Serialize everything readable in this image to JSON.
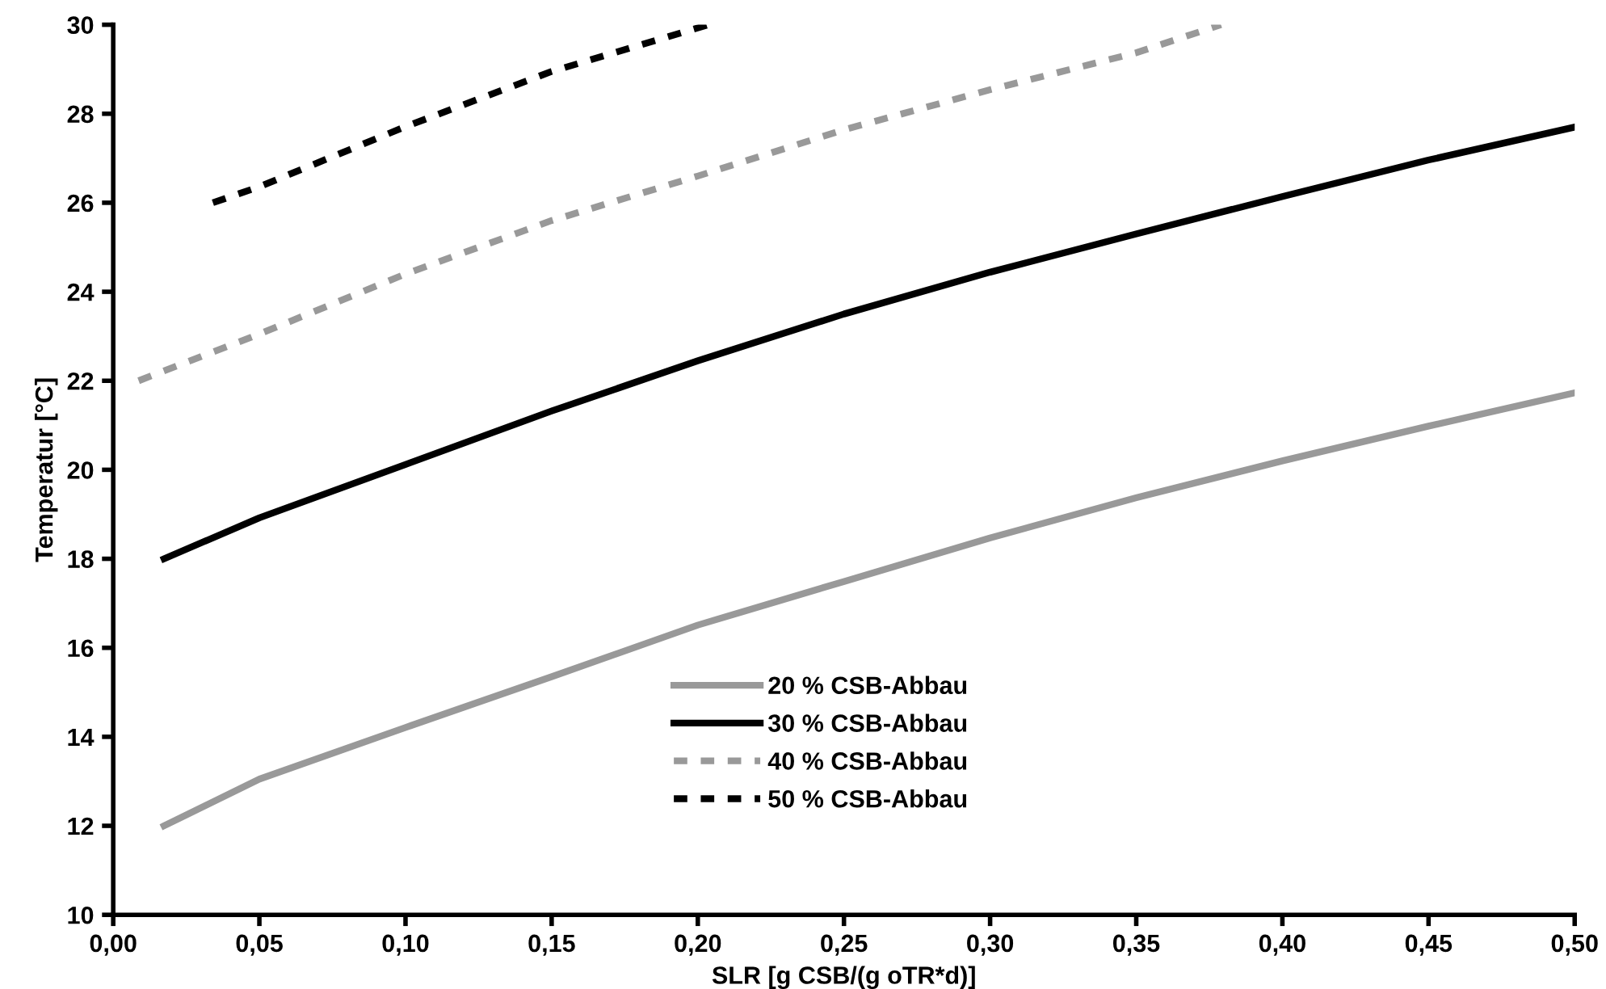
{
  "chart_data": {
    "type": "line",
    "xlabel": "SLR [g CSB/(g oTR*d)]",
    "ylabel": "Temperatur [°C]",
    "xlim": [
      0,
      0.5
    ],
    "ylim": [
      10,
      30
    ],
    "xticks": [
      {
        "value": 0,
        "label": "0,00"
      },
      {
        "value": 0.05,
        "label": "0,05"
      },
      {
        "value": 0.1,
        "label": "0,10"
      },
      {
        "value": 0.15,
        "label": "0,15"
      },
      {
        "value": 0.2,
        "label": "0,20"
      },
      {
        "value": 0.25,
        "label": "0,25"
      },
      {
        "value": 0.3,
        "label": "0,30"
      },
      {
        "value": 0.35,
        "label": "0,35"
      },
      {
        "value": 0.4,
        "label": "0,40"
      },
      {
        "value": 0.45,
        "label": "0,45"
      },
      {
        "value": 0.5,
        "label": "0,50"
      }
    ],
    "yticks": [
      10,
      12,
      14,
      16,
      18,
      20,
      22,
      24,
      26,
      28,
      30
    ],
    "grid": false,
    "legend": "bottom right",
    "marker": "none",
    "series": [
      {
        "name": "20 % CSB-Abbau",
        "color": "#999999",
        "line_style": "solid",
        "x": [
          0.0174,
          0.05,
          0.1,
          0.15,
          0.2,
          0.25,
          0.3,
          0.35,
          0.4,
          0.45,
          0.5
        ],
        "values": [
          12.0,
          13.05,
          14.21,
          15.35,
          16.51,
          17.49,
          18.47,
          19.37,
          20.2,
          20.98,
          21.73
        ]
      },
      {
        "name": "30 % CSB-Abbau",
        "color": "#000000",
        "line_style": "solid",
        "x": [
          0.0174,
          0.05,
          0.1,
          0.15,
          0.2,
          0.25,
          0.3,
          0.35,
          0.4,
          0.45,
          0.5
        ],
        "values": [
          18.0,
          18.92,
          20.12,
          21.32,
          22.45,
          23.5,
          24.44,
          25.3,
          26.14,
          26.96,
          27.7
        ]
      },
      {
        "name": "40 % CSB-Abbau",
        "color": "#999999",
        "line_style": "dashed",
        "x": [
          0.0087,
          0.05,
          0.1,
          0.15,
          0.2,
          0.25,
          0.3,
          0.35,
          0.379
        ],
        "values": [
          22.0,
          23.05,
          24.4,
          25.6,
          26.6,
          27.64,
          28.54,
          29.37,
          30.0
        ]
      },
      {
        "name": "50 % CSB-Abbau",
        "color": "#000000",
        "line_style": "dashed",
        "x": [
          0.0341,
          0.05,
          0.1,
          0.15,
          0.2037
        ],
        "values": [
          26.0,
          26.36,
          27.71,
          28.95,
          30.0
        ]
      }
    ]
  }
}
